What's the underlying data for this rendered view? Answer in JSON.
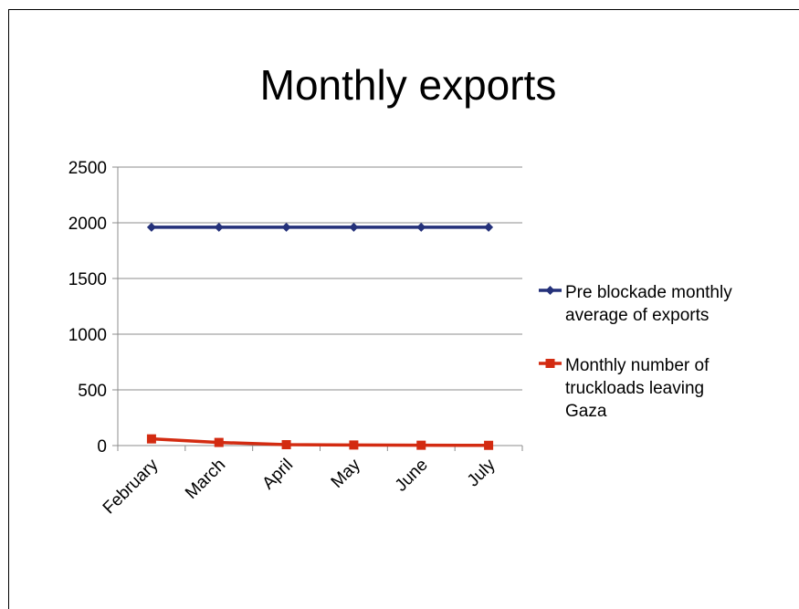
{
  "title": "Monthly exports",
  "chart_data": {
    "type": "line",
    "title": "Monthly exports",
    "categories": [
      "February",
      "March",
      "April",
      "May",
      "June",
      "July"
    ],
    "ylim": [
      0,
      2500
    ],
    "yticks": [
      "0",
      "500",
      "1000",
      "1500",
      "2000",
      "2500"
    ],
    "grid": true,
    "legend_position": "right",
    "series": [
      {
        "name": "Pre blockade monthly average of exports",
        "name_lines": [
          "Pre blockade monthly",
          "average of exports"
        ],
        "values": [
          1960,
          1960,
          1960,
          1960,
          1960,
          1960
        ],
        "color": "#24317a",
        "marker": "diamond"
      },
      {
        "name": "Monthly number of truckloads leaving Gaza",
        "name_lines": [
          "Monthly number of",
          "truckloads leaving",
          "Gaza"
        ],
        "values": [
          60,
          28,
          8,
          5,
          3,
          2
        ],
        "color": "#d32b11",
        "marker": "square"
      }
    ]
  }
}
